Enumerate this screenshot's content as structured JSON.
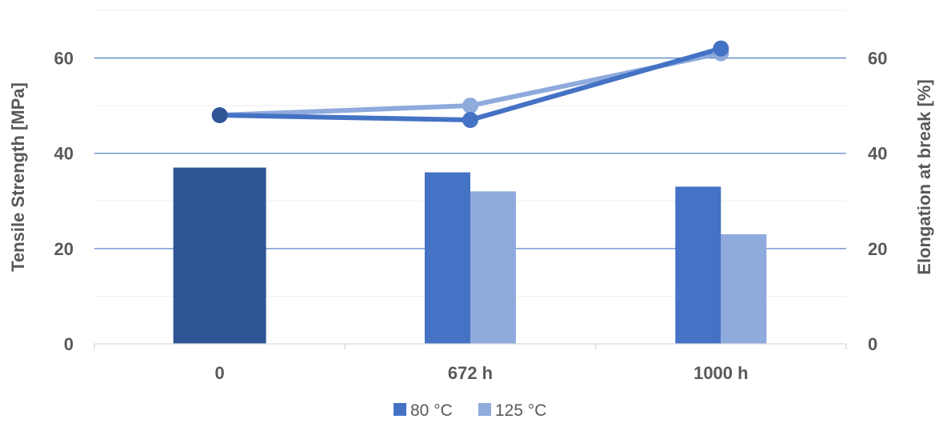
{
  "chart_data": {
    "type": "bar",
    "categories": [
      "0",
      "672 h",
      "1000 h"
    ],
    "ylabel": "Tensile Strength [MPa]",
    "y2label": "Elongation at break [%]",
    "ylim": [
      0,
      70
    ],
    "y2lim": [
      0,
      70
    ],
    "yticks": [
      "0",
      "20",
      "40",
      "60"
    ],
    "y2ticks": [
      "0",
      "20",
      "40",
      "60"
    ],
    "grid": true,
    "legend_position": "bottom",
    "bar_series": [
      {
        "name": "80 °C",
        "color": "#4472C4",
        "values": [
          37,
          36,
          33
        ]
      },
      {
        "name": "125 °C",
        "color": "#8FAADC",
        "values": [
          null,
          32,
          23
        ]
      }
    ],
    "initial_bar": {
      "category": "0",
      "value": 37,
      "color": "#2F5597"
    },
    "line_series": [
      {
        "color": "#4472C4",
        "axis": "right",
        "values": [
          48,
          47,
          62
        ]
      },
      {
        "color": "#8FAADC",
        "axis": "right",
        "values": [
          48,
          50,
          61
        ]
      }
    ],
    "initial_point_color": "#2F5597"
  },
  "legend": {
    "items": [
      {
        "label": "80 °C",
        "color": "#4472C4"
      },
      {
        "label": "125 °C",
        "color": "#8FAADC"
      }
    ]
  }
}
